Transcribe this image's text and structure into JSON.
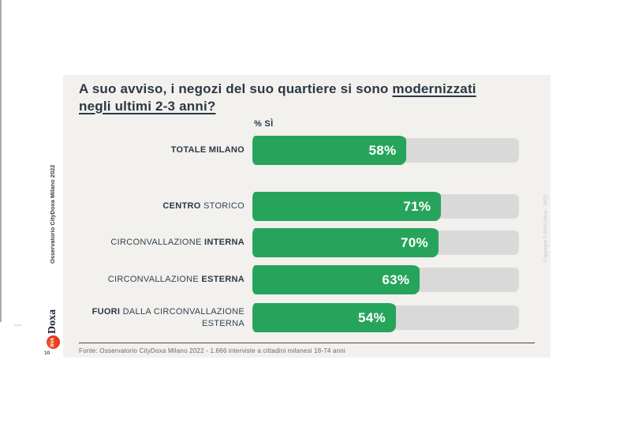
{
  "slide": {
    "title": {
      "pre": "A suo avviso, i negozi del suo quartiere si sono ",
      "underlined": "modernizzati",
      "line2": "negli ultimi 2-3 anni?"
    },
    "axis_label": "% SÌ",
    "footer_source": "Fonte: Osservatorio CityDoxa Milano 2022 - 1.666 interviste a cittadini milanesi 18-74 anni"
  },
  "sidebar": {
    "vertical_title": "Osservatorio CityDoxa Milano 2022",
    "logo": {
      "circle_text": "BVA",
      "brand_text": "Doxa"
    },
    "page_number": "10"
  },
  "watermark": "Copyright © BVA Doxa - 2022",
  "colors": {
    "bar_fill": "#27a45c",
    "bar_track": "#d9d9d9",
    "slide_bg": "#f2f1ee",
    "title_text": "#2b3844"
  },
  "chart_data": {
    "type": "bar",
    "orientation": "horizontal",
    "title": "A suo avviso, i negozi del suo quartiere si sono modernizzati negli ultimi 2-3 anni? (% Sì)",
    "unit": "%",
    "xlim": [
      0,
      100
    ],
    "grid": false,
    "legend": null,
    "categories": [
      "TOTALE MILANO",
      "CENTRO STORICO",
      "CIRCONVALLAZIONE INTERNA",
      "CIRCONVALLAZIONE ESTERNA",
      "FUORI DALLA CIRCONVALLAZIONE ESTERNA"
    ],
    "values": [
      58,
      71,
      70,
      63,
      54
    ],
    "value_labels": [
      "58%",
      "71%",
      "70%",
      "63%",
      "54%"
    ],
    "rows": [
      {
        "value": 58,
        "label_segments": [
          {
            "text": "TOTALE MILANO",
            "bold": true
          }
        ]
      },
      {
        "value": 71,
        "label_segments": [
          {
            "text": "CENTRO",
            "bold": true
          },
          {
            "text": " STORICO",
            "bold": false
          }
        ]
      },
      {
        "value": 70,
        "label_segments": [
          {
            "text": "CIRCONVALLAZIONE ",
            "bold": false
          },
          {
            "text": "INTERNA",
            "bold": true
          }
        ]
      },
      {
        "value": 63,
        "label_segments": [
          {
            "text": "CIRCONVALLAZIONE ",
            "bold": false
          },
          {
            "text": "ESTERNA",
            "bold": true
          }
        ]
      },
      {
        "value": 54,
        "label_segments": [
          {
            "text": "FUORI",
            "bold": true
          },
          {
            "text": " DALLA CIRCONVALLAZIONE ESTERNA",
            "bold": false
          }
        ]
      }
    ]
  }
}
